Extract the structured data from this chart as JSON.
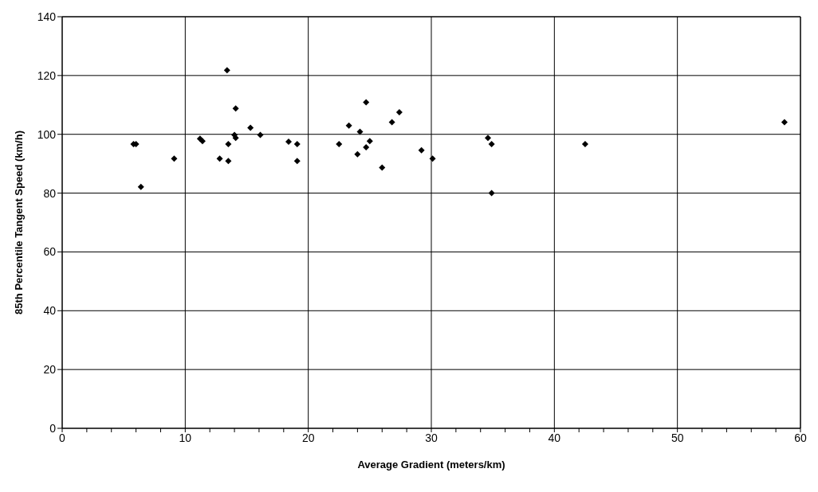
{
  "chart_data": {
    "type": "scatter",
    "xlabel": "Average Gradient (meters/km)",
    "ylabel": "85th Percentile Tangent Speed (km/h)",
    "xlim": [
      0,
      60
    ],
    "xticks": [
      0,
      {
        "value": 2,
        "label": null
      },
      {
        "value": 4,
        "label": null
      },
      {
        "value": 6,
        "label": null
      },
      {
        "value": 8,
        "label": null
      },
      10,
      {
        "value": 12,
        "label": null
      },
      {
        "value": 14,
        "label": null
      },
      {
        "value": 16,
        "label": null
      },
      {
        "value": 18,
        "label": null
      },
      20,
      {
        "value": 22,
        "label": null
      },
      {
        "value": 24,
        "label": null
      },
      {
        "value": 26,
        "label": null
      },
      {
        "value": 28,
        "label": null
      },
      30,
      {
        "value": 32,
        "label": null
      },
      {
        "value": 34,
        "label": null
      },
      {
        "value": 36,
        "label": null
      },
      {
        "value": 38,
        "label": null
      },
      40,
      {
        "value": 42,
        "label": null
      },
      {
        "value": 44,
        "label": null
      },
      {
        "value": 46,
        "label": null
      },
      {
        "value": 48,
        "label": null
      },
      50,
      {
        "value": 52,
        "label": null
      },
      {
        "value": 54,
        "label": null
      },
      {
        "value": 56,
        "label": null
      },
      {
        "value": 58,
        "label": null
      },
      60
    ],
    "ylim": [
      0,
      140
    ],
    "yticks": [
      0,
      20,
      40,
      60,
      80,
      100,
      120,
      140
    ],
    "grid": true,
    "marker": "diamond",
    "series": [
      {
        "color": "#000000",
        "x": [
          5.8,
          6.0,
          6.4,
          9.1,
          11.2,
          11.4,
          12.8,
          13.4,
          13.5,
          13.5,
          14.1,
          14.0,
          14.1,
          15.3,
          16.1,
          18.4,
          19.1,
          19.1,
          22.5,
          23.3,
          24.0,
          24.2,
          24.7,
          24.7,
          25.0,
          26.0,
          26.8,
          27.4,
          29.2,
          30.1,
          34.6,
          34.9,
          34.9,
          42.5,
          58.7
        ],
        "values": [
          96.7,
          96.7,
          82.1,
          91.7,
          98.5,
          97.7,
          91.7,
          121.8,
          96.7,
          90.9,
          108.8,
          99.8,
          98.8,
          102.2,
          99.8,
          97.5,
          96.7,
          90.9,
          96.7,
          103.0,
          93.2,
          100.9,
          110.9,
          95.6,
          97.7,
          88.7,
          104.1,
          107.5,
          94.6,
          91.7,
          98.8,
          96.7,
          80.0,
          96.7,
          104.1
        ]
      }
    ]
  }
}
